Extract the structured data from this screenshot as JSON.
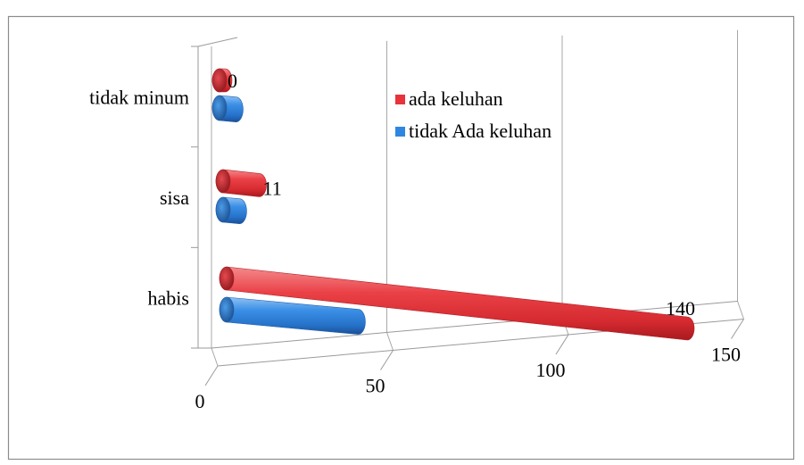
{
  "chart_data": {
    "type": "bar",
    "orientation": "horizontal",
    "style": "3d-cylinder",
    "categories": [
      "habis",
      "sisa",
      "tidak minum"
    ],
    "series": [
      {
        "name": "ada keluhan",
        "values": [
          140,
          11,
          0
        ],
        "color": "#e8333a",
        "labels": [
          "140",
          "11",
          "0"
        ]
      },
      {
        "name": "tidak Ada keluhan",
        "values": [
          40,
          5,
          5
        ],
        "color": "#2f86e0",
        "labels": [
          "",
          "",
          ""
        ]
      }
    ],
    "x_ticks": [
      "0",
      "50",
      "100",
      "150"
    ],
    "xlim": [
      0,
      150
    ],
    "grid": true,
    "legend_position": "top-right",
    "title": "",
    "xlabel": "",
    "ylabel": ""
  }
}
